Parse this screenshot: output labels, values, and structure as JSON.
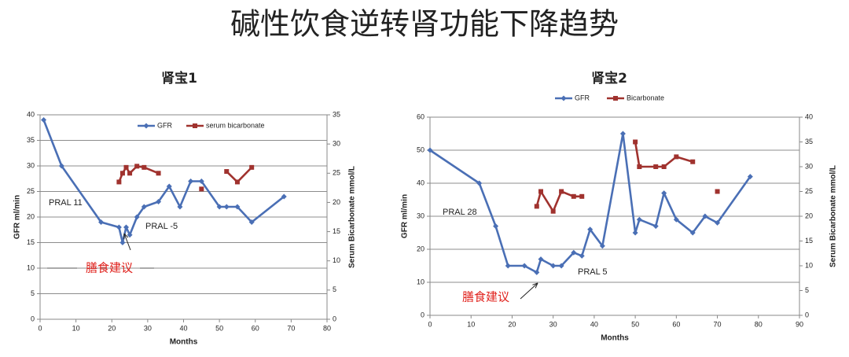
{
  "title": "碱性饮食逆转肾功能下降趋势",
  "chart_data": [
    {
      "type": "line",
      "title": "肾宝1",
      "x_label": "Months",
      "y_label": "GFR ml/min",
      "y2_label": "Serum Bicarbonate mmol/L",
      "xlim": [
        0,
        80
      ],
      "xticks": [
        0,
        10,
        20,
        30,
        40,
        50,
        60,
        70,
        80
      ],
      "ylim": [
        0,
        40
      ],
      "yticks": [
        0,
        5,
        10,
        15,
        20,
        25,
        30,
        35,
        40
      ],
      "y2lim": [
        0,
        35
      ],
      "y2ticks": [
        0,
        5,
        10,
        15,
        20,
        25,
        30,
        35
      ],
      "grid": true,
      "legend": "inside-top",
      "series": [
        {
          "name": "GFR",
          "color": "#4a6fb5",
          "marker": "diamond",
          "x": [
            1,
            6,
            17,
            22,
            23,
            24,
            25,
            27,
            29,
            33,
            36,
            39,
            42,
            45,
            50,
            52,
            55,
            59,
            68
          ],
          "values": [
            39,
            30,
            19,
            18,
            15,
            18,
            16.5,
            20,
            22,
            23,
            26,
            22,
            27,
            27,
            22,
            22,
            22,
            19,
            24
          ]
        },
        {
          "name": "serum bicarbonate",
          "color": "#a0322e",
          "marker": "square",
          "axis": "y2",
          "x": [
            22,
            23,
            24,
            25,
            27,
            29,
            33,
            null,
            45,
            null,
            52,
            55,
            59
          ],
          "values": [
            23.5,
            25,
            26,
            25,
            26.2,
            26,
            25,
            null,
            22.3,
            null,
            25.3,
            23.5,
            26
          ]
        }
      ],
      "annotations": [
        {
          "text": "PRAL 11"
        },
        {
          "text": "PRAL -5"
        },
        {
          "text": "膳食建议",
          "color": "#e0201b"
        }
      ]
    },
    {
      "type": "line",
      "title": "肾宝2",
      "x_label": "Months",
      "y_label": "GFR ml/min",
      "y2_label": "Serum Bicarbonate mmol/L",
      "xlim": [
        0,
        90
      ],
      "xticks": [
        0,
        10,
        20,
        30,
        40,
        50,
        60,
        70,
        80,
        90
      ],
      "ylim": [
        0,
        60
      ],
      "yticks": [
        0,
        10,
        20,
        30,
        40,
        50,
        60
      ],
      "y2lim": [
        0,
        40
      ],
      "y2ticks": [
        0,
        5,
        10,
        15,
        20,
        25,
        30,
        35,
        40
      ],
      "grid": true,
      "legend": "top",
      "series": [
        {
          "name": "GFR",
          "color": "#4a6fb5",
          "marker": "diamond",
          "x": [
            0,
            12,
            16,
            19,
            23,
            26,
            27,
            30,
            32,
            35,
            37,
            39,
            42,
            47,
            50,
            51,
            55,
            57,
            60,
            64,
            67,
            70,
            78
          ],
          "values": [
            50,
            40,
            27,
            15,
            15,
            13,
            17,
            15,
            15,
            19,
            18,
            26,
            21,
            55,
            25,
            29,
            27,
            37,
            29,
            25,
            30,
            28,
            42
          ]
        },
        {
          "name": "Bicarbonate",
          "color": "#a0322e",
          "marker": "square",
          "axis": "y2",
          "x": [
            26,
            27,
            30,
            32,
            35,
            37,
            null,
            50,
            51,
            55,
            57,
            60,
            64,
            null,
            70
          ],
          "values": [
            22,
            25,
            21,
            25,
            24,
            24,
            null,
            35,
            30,
            30,
            30,
            32,
            31,
            null,
            25
          ]
        }
      ],
      "annotations": [
        {
          "text": "PRAL 28"
        },
        {
          "text": "PRAL 5"
        },
        {
          "text": "膳食建议",
          "color": "#e0201b"
        }
      ]
    }
  ]
}
